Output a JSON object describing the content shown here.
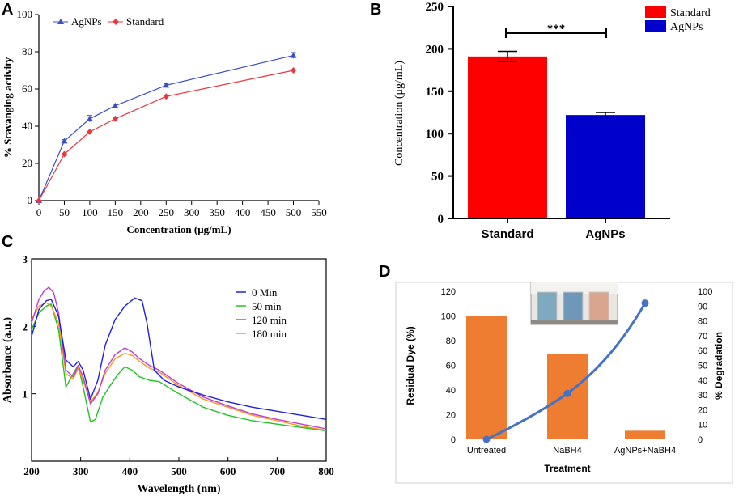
{
  "chart_data": [
    {
      "panel": "A",
      "type": "line",
      "xlabel": "Concentration (μg/mL)",
      "ylabel": "% Scavanging activity",
      "xlim": [
        0,
        550
      ],
      "ylim": [
        0,
        100
      ],
      "xticks": [
        0,
        50,
        100,
        150,
        200,
        250,
        300,
        350,
        400,
        450,
        500,
        550
      ],
      "yticks": [
        0,
        20,
        40,
        60,
        80,
        100
      ],
      "series": [
        {
          "name": "AgNPs",
          "color": "#3a4fc7",
          "marker": "triangle",
          "x": [
            0,
            50,
            100,
            150,
            250,
            500
          ],
          "y": [
            0,
            32,
            44,
            51,
            62,
            78
          ],
          "err": [
            0,
            0.8,
            1.8,
            0.8,
            0.8,
            1.6
          ]
        },
        {
          "name": "Standard",
          "color": "#e8383f",
          "marker": "diamond",
          "x": [
            0,
            50,
            100,
            150,
            250,
            500
          ],
          "y": [
            0,
            25,
            37,
            44,
            56,
            70
          ],
          "err": [
            0,
            0,
            0,
            0,
            0,
            0
          ]
        }
      ],
      "legend": [
        "AgNPs",
        "Standard"
      ]
    },
    {
      "panel": "B",
      "type": "bar",
      "categories": [
        "Standard",
        "AgNPs"
      ],
      "values": [
        191,
        122
      ],
      "errors": [
        6,
        3
      ],
      "colors": [
        "#ff0000",
        "#0000cc"
      ],
      "ylabel": "Concentration (μg/mL)",
      "ylim": [
        0,
        250
      ],
      "yticks": [
        0,
        50,
        100,
        150,
        200,
        250
      ],
      "significance": "***",
      "legend": [
        "Standard",
        "AgNPs"
      ]
    },
    {
      "panel": "C",
      "type": "line",
      "xlabel": "Wavelength (nm)",
      "ylabel": "Absorbance (a.u.)",
      "xlim": [
        200,
        800
      ],
      "ylim": [
        0,
        3
      ],
      "xticks": [
        200,
        300,
        400,
        500,
        600,
        700,
        800
      ],
      "yticks": [
        1,
        2,
        3
      ],
      "series": [
        {
          "name": "0 Min",
          "color": "#1f1fe0",
          "x": [
            200,
            215,
            230,
            240,
            255,
            270,
            285,
            295,
            305,
            320,
            335,
            350,
            370,
            390,
            410,
            425,
            435,
            450,
            470,
            500,
            550,
            600,
            650,
            700,
            750,
            800
          ],
          "y": [
            1.85,
            2.25,
            2.38,
            2.4,
            2.15,
            1.5,
            1.4,
            1.48,
            1.35,
            0.92,
            1.2,
            1.72,
            2.1,
            2.3,
            2.42,
            2.38,
            2.05,
            1.35,
            1.2,
            1.1,
            0.98,
            0.88,
            0.8,
            0.74,
            0.68,
            0.62
          ]
        },
        {
          "name": "50 min",
          "color": "#22c322",
          "x": [
            200,
            215,
            230,
            240,
            255,
            270,
            285,
            295,
            305,
            320,
            330,
            345,
            360,
            375,
            390,
            405,
            420,
            440,
            460,
            500,
            550,
            600,
            650,
            700,
            750,
            800
          ],
          "y": [
            1.95,
            2.2,
            2.3,
            2.33,
            1.95,
            1.1,
            1.3,
            1.42,
            1.1,
            0.58,
            0.62,
            0.95,
            1.12,
            1.28,
            1.4,
            1.35,
            1.25,
            1.2,
            1.18,
            1.0,
            0.8,
            0.68,
            0.6,
            0.55,
            0.5,
            0.45
          ]
        },
        {
          "name": "120 min",
          "color": "#c33ccf",
          "x": [
            200,
            215,
            225,
            235,
            245,
            255,
            270,
            285,
            295,
            305,
            320,
            335,
            350,
            370,
            390,
            405,
            420,
            440,
            460,
            500,
            550,
            600,
            650,
            700,
            750,
            800
          ],
          "y": [
            2.05,
            2.4,
            2.52,
            2.58,
            2.5,
            2.2,
            1.35,
            1.25,
            1.42,
            1.25,
            0.85,
            1.0,
            1.35,
            1.58,
            1.68,
            1.62,
            1.52,
            1.42,
            1.35,
            1.15,
            0.95,
            0.82,
            0.7,
            0.62,
            0.55,
            0.48
          ]
        },
        {
          "name": "180 min",
          "color": "#f59b1c",
          "x": [
            200,
            215,
            230,
            240,
            255,
            270,
            285,
            295,
            305,
            320,
            335,
            350,
            370,
            390,
            405,
            420,
            440,
            460,
            500,
            550,
            600,
            650,
            700,
            750,
            800
          ],
          "y": [
            2.1,
            2.3,
            2.35,
            2.3,
            2.05,
            1.3,
            1.22,
            1.38,
            1.2,
            0.88,
            1.02,
            1.3,
            1.52,
            1.6,
            1.57,
            1.48,
            1.38,
            1.32,
            1.12,
            0.92,
            0.8,
            0.68,
            0.6,
            0.52,
            0.46
          ]
        }
      ],
      "legend": [
        "0 Min",
        "50 min",
        "120 min",
        "180 min"
      ]
    },
    {
      "panel": "D",
      "type": "bar",
      "categories": [
        "Untreated",
        "NaBH4",
        "AgNPs+NaBH4"
      ],
      "values": [
        100,
        69,
        7
      ],
      "bar_color": "#ee7d31",
      "xlabel": "Treatment",
      "ylabel": "Residual Dye (%)",
      "ylim": [
        0,
        120
      ],
      "yticks": [
        0,
        20,
        40,
        60,
        80,
        100,
        120
      ],
      "line_series": {
        "name": "% Degradation",
        "values": [
          0,
          31,
          92
        ],
        "color": "#4472c4"
      },
      "y2label": "% Degradation",
      "y2lim": [
        0,
        100
      ],
      "y2ticks": [
        0,
        10,
        20,
        30,
        40,
        50,
        60,
        70,
        80,
        90,
        100
      ]
    }
  ]
}
